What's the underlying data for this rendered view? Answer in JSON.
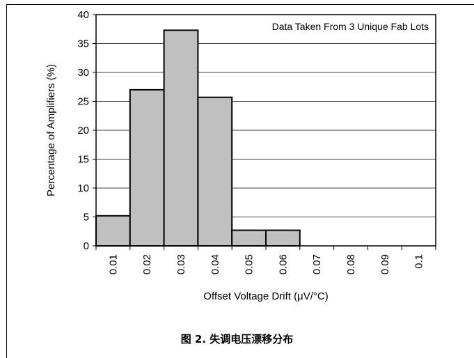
{
  "chart_data": {
    "type": "bar",
    "categories": [
      "0.01",
      "0.02",
      "0.03",
      "0.04",
      "0.05",
      "0.06",
      "0.07",
      "0.08",
      "0.09",
      "0.1"
    ],
    "values": [
      5.2,
      27,
      37.3,
      25.7,
      2.7,
      2.7,
      0,
      0,
      0,
      0
    ],
    "xlabel": "Offset Voltage Drift (μV/°C)",
    "ylabel": "Percentage of Amplifiers (%)",
    "ylim": [
      0,
      40
    ],
    "yticks": [
      "0",
      "5",
      "10",
      "15",
      "20",
      "25",
      "30",
      "35",
      "40"
    ],
    "annotation": "Data Taken From 3 Unique Fab Lots",
    "grid": true,
    "bar_color": "#c0c0c0"
  },
  "caption": "图 2. 失调电压漂移分布"
}
